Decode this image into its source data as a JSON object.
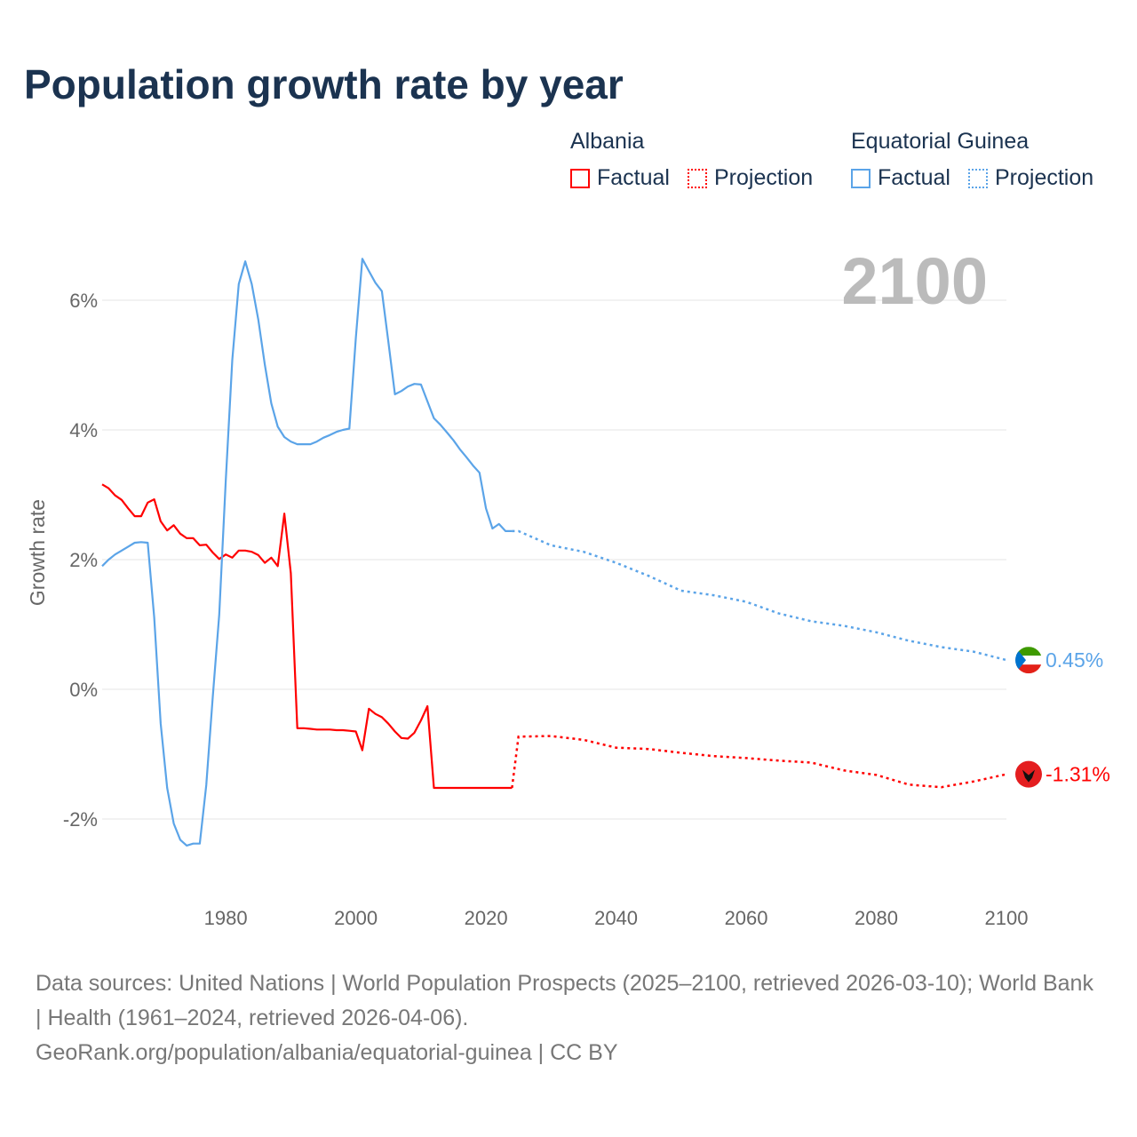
{
  "title": "Population growth rate by year",
  "legend": [
    {
      "name": "Albania",
      "factual": "Factual",
      "projection": "Projection"
    },
    {
      "name": "Equatorial Guinea",
      "factual": "Factual",
      "projection": "Projection"
    }
  ],
  "colors": {
    "albania": "#ff0000",
    "equatorial_guinea": "#5ba4e8",
    "title": "#1b3350",
    "year_watermark": "#bbbbbb"
  },
  "footer": {
    "sources": "Data sources: United Nations | World Population Prospects (2025–2100, retrieved 2026-03-10); World Bank | Health (1961–2024, retrieved 2026-04-06).",
    "attribution": "GeoRank.org/population/albania/equatorial-guinea | CC BY"
  },
  "chart_data": {
    "type": "line",
    "title": "Population growth rate by year",
    "xlabel": "",
    "ylabel": "Growth rate",
    "xlim": [
      1961,
      2100
    ],
    "ylim": [
      -3,
      7
    ],
    "x_ticks": [
      1980,
      2000,
      2020,
      2040,
      2060,
      2080,
      2100
    ],
    "x_tick_labels": [
      "1980",
      "2000",
      "2020",
      "2040",
      "2060",
      "2080",
      "2100"
    ],
    "y_ticks": [
      -2,
      0,
      2,
      4,
      6
    ],
    "y_tick_labels": [
      "-2%",
      "0%",
      "2%",
      "4%",
      "6%"
    ],
    "year_display": "2100",
    "grid": true,
    "legend_position": "top-right",
    "series": [
      {
        "name": "Albania",
        "key": "albania",
        "end_label": "-1.31%",
        "factual": [
          [
            1961,
            3.16
          ],
          [
            1962,
            3.1
          ],
          [
            1963,
            2.99
          ],
          [
            1964,
            2.92
          ],
          [
            1965,
            2.79
          ],
          [
            1966,
            2.67
          ],
          [
            1967,
            2.67
          ],
          [
            1968,
            2.88
          ],
          [
            1969,
            2.93
          ],
          [
            1970,
            2.59
          ],
          [
            1971,
            2.45
          ],
          [
            1972,
            2.53
          ],
          [
            1973,
            2.4
          ],
          [
            1974,
            2.33
          ],
          [
            1975,
            2.33
          ],
          [
            1976,
            2.22
          ],
          [
            1977,
            2.23
          ],
          [
            1978,
            2.11
          ],
          [
            1979,
            2.01
          ],
          [
            1980,
            2.08
          ],
          [
            1981,
            2.03
          ],
          [
            1982,
            2.14
          ],
          [
            1983,
            2.14
          ],
          [
            1984,
            2.12
          ],
          [
            1985,
            2.07
          ],
          [
            1986,
            1.95
          ],
          [
            1987,
            2.03
          ],
          [
            1988,
            1.9
          ],
          [
            1989,
            2.71
          ],
          [
            1990,
            1.79
          ],
          [
            1991,
            -0.6
          ],
          [
            1992,
            -0.6
          ],
          [
            1993,
            -0.61
          ],
          [
            1994,
            -0.62
          ],
          [
            1995,
            -0.62
          ],
          [
            1996,
            -0.62
          ],
          [
            1997,
            -0.63
          ],
          [
            1998,
            -0.63
          ],
          [
            1999,
            -0.64
          ],
          [
            2000,
            -0.65
          ],
          [
            2001,
            -0.94
          ],
          [
            2002,
            -0.3
          ],
          [
            2003,
            -0.38
          ],
          [
            2004,
            -0.43
          ],
          [
            2005,
            -0.53
          ],
          [
            2006,
            -0.65
          ],
          [
            2007,
            -0.75
          ],
          [
            2008,
            -0.76
          ],
          [
            2009,
            -0.67
          ],
          [
            2010,
            -0.48
          ],
          [
            2011,
            -0.26
          ],
          [
            2012,
            -1.52
          ],
          [
            2015,
            -1.52
          ],
          [
            2020,
            -1.52
          ],
          [
            2024,
            -1.52
          ]
        ],
        "projection": [
          [
            2024,
            -1.52
          ],
          [
            2025,
            -0.73
          ],
          [
            2030,
            -0.72
          ],
          [
            2035,
            -0.78
          ],
          [
            2040,
            -0.9
          ],
          [
            2045,
            -0.92
          ],
          [
            2050,
            -0.98
          ],
          [
            2055,
            -1.03
          ],
          [
            2060,
            -1.06
          ],
          [
            2065,
            -1.1
          ],
          [
            2070,
            -1.13
          ],
          [
            2075,
            -1.25
          ],
          [
            2080,
            -1.32
          ],
          [
            2085,
            -1.47
          ],
          [
            2090,
            -1.51
          ],
          [
            2095,
            -1.42
          ],
          [
            2100,
            -1.31
          ]
        ]
      },
      {
        "name": "Equatorial Guinea",
        "key": "equatorial_guinea",
        "end_label": "0.45%",
        "factual": [
          [
            1961,
            1.9
          ],
          [
            1962,
            2.0
          ],
          [
            1963,
            2.08
          ],
          [
            1964,
            2.14
          ],
          [
            1965,
            2.2
          ],
          [
            1966,
            2.26
          ],
          [
            1967,
            2.27
          ],
          [
            1968,
            2.26
          ],
          [
            1969,
            1.11
          ],
          [
            1970,
            -0.53
          ],
          [
            1971,
            -1.52
          ],
          [
            1972,
            -2.07
          ],
          [
            1973,
            -2.32
          ],
          [
            1974,
            -2.41
          ],
          [
            1975,
            -2.38
          ],
          [
            1976,
            -2.38
          ],
          [
            1977,
            -1.48
          ],
          [
            1978,
            -0.12
          ],
          [
            1979,
            1.15
          ],
          [
            1980,
            3.23
          ],
          [
            1981,
            5.08
          ],
          [
            1982,
            6.25
          ],
          [
            1983,
            6.6
          ],
          [
            1984,
            6.25
          ],
          [
            1985,
            5.7
          ],
          [
            1986,
            5.01
          ],
          [
            1987,
            4.41
          ],
          [
            1988,
            4.05
          ],
          [
            1989,
            3.89
          ],
          [
            1990,
            3.82
          ],
          [
            1991,
            3.78
          ],
          [
            1992,
            3.78
          ],
          [
            1993,
            3.78
          ],
          [
            1994,
            3.82
          ],
          [
            1995,
            3.88
          ],
          [
            1996,
            3.92
          ],
          [
            1997,
            3.97
          ],
          [
            1998,
            4.0
          ],
          [
            1999,
            4.02
          ],
          [
            2000,
            5.42
          ],
          [
            2001,
            6.64
          ],
          [
            2002,
            6.45
          ],
          [
            2003,
            6.27
          ],
          [
            2004,
            6.14
          ],
          [
            2005,
            5.36
          ],
          [
            2006,
            4.55
          ],
          [
            2007,
            4.6
          ],
          [
            2008,
            4.67
          ],
          [
            2009,
            4.71
          ],
          [
            2010,
            4.7
          ],
          [
            2011,
            4.44
          ],
          [
            2012,
            4.18
          ],
          [
            2013,
            4.08
          ],
          [
            2014,
            3.96
          ],
          [
            2015,
            3.84
          ],
          [
            2016,
            3.7
          ],
          [
            2017,
            3.58
          ],
          [
            2018,
            3.45
          ],
          [
            2019,
            3.34
          ],
          [
            2020,
            2.79
          ],
          [
            2021,
            2.48
          ],
          [
            2022,
            2.55
          ],
          [
            2023,
            2.44
          ],
          [
            2024,
            2.44
          ]
        ],
        "projection": [
          [
            2024,
            2.44
          ],
          [
            2025,
            2.44
          ],
          [
            2030,
            2.22
          ],
          [
            2035,
            2.12
          ],
          [
            2040,
            1.95
          ],
          [
            2045,
            1.75
          ],
          [
            2050,
            1.52
          ],
          [
            2055,
            1.45
          ],
          [
            2060,
            1.35
          ],
          [
            2065,
            1.17
          ],
          [
            2070,
            1.05
          ],
          [
            2075,
            0.98
          ],
          [
            2080,
            0.88
          ],
          [
            2085,
            0.75
          ],
          [
            2090,
            0.65
          ],
          [
            2095,
            0.58
          ],
          [
            2100,
            0.45
          ]
        ]
      }
    ]
  }
}
